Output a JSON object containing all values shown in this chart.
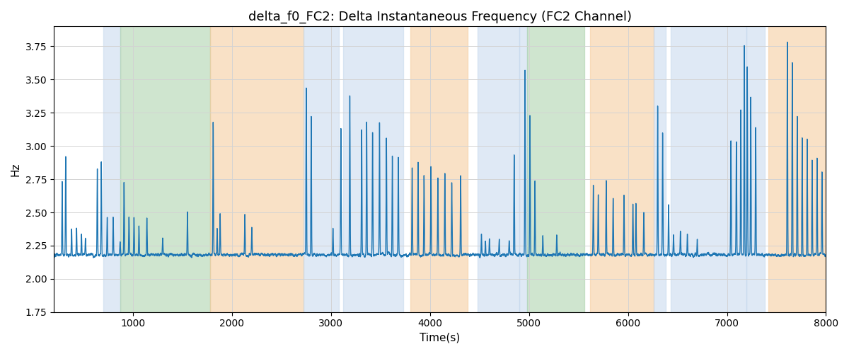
{
  "title": "delta_f0_FC2: Delta Instantaneous Frequency (FC2 Channel)",
  "xlabel": "Time(s)",
  "ylabel": "Hz",
  "xlim": [
    200,
    8000
  ],
  "ylim": [
    1.75,
    3.9
  ],
  "yticks": [
    1.75,
    2.0,
    2.25,
    2.5,
    2.75,
    3.0,
    3.25,
    3.5,
    3.75
  ],
  "xticks": [
    1000,
    2000,
    3000,
    4000,
    5000,
    6000,
    7000,
    8000
  ],
  "line_color": "#1f77b4",
  "line_width": 1.0,
  "background_color": "#ffffff",
  "color_blue": "#c5d8ed",
  "color_green": "#a8d0a8",
  "color_orange": "#f5ca98",
  "alpha": 0.55,
  "bands": [
    {
      "start": 700,
      "end": 870,
      "type": "blue"
    },
    {
      "start": 870,
      "end": 1780,
      "type": "green"
    },
    {
      "start": 1780,
      "end": 2720,
      "type": "orange"
    },
    {
      "start": 2720,
      "end": 3080,
      "type": "blue"
    },
    {
      "start": 3120,
      "end": 3730,
      "type": "blue"
    },
    {
      "start": 3800,
      "end": 4380,
      "type": "orange"
    },
    {
      "start": 4480,
      "end": 4900,
      "type": "blue"
    },
    {
      "start": 4900,
      "end": 4980,
      "type": "blue"
    },
    {
      "start": 4980,
      "end": 5560,
      "type": "green"
    },
    {
      "start": 5620,
      "end": 6260,
      "type": "orange"
    },
    {
      "start": 6260,
      "end": 6380,
      "type": "blue"
    },
    {
      "start": 6430,
      "end": 7200,
      "type": "blue"
    },
    {
      "start": 7200,
      "end": 7380,
      "type": "blue"
    },
    {
      "start": 7420,
      "end": 8000,
      "type": "orange"
    }
  ],
  "seed": 123,
  "n_points": 15000,
  "t_start": 200,
  "t_end": 8000,
  "base_mean": 2.18,
  "ar_coef": 0.92,
  "ar_noise_scale": 0.028
}
